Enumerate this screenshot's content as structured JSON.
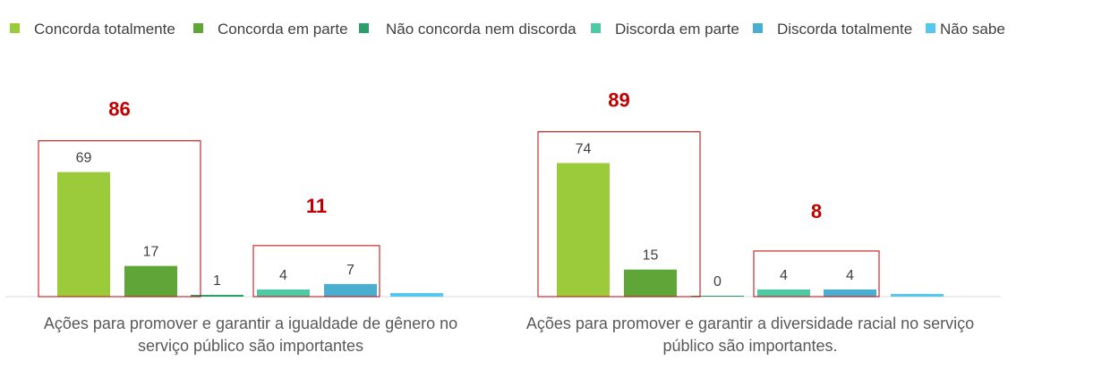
{
  "chart_data": {
    "type": "bar",
    "series": [
      {
        "name": "Concorda totalmente",
        "color": "#9bca3a"
      },
      {
        "name": "Concorda em parte",
        "color": "#60a537"
      },
      {
        "name": "Não concorda nem discorda",
        "color": "#2e9e6a"
      },
      {
        "name": "Discorda em parte",
        "color": "#4fcaa5"
      },
      {
        "name": "Discorda totalmente",
        "color": "#4aaed0"
      },
      {
        "name": "Não sabe",
        "color": "#56c8f0"
      }
    ],
    "categories": [
      {
        "label_lines": [
          "Ações para promover e garantir a igualdade de gênero no",
          "serviço público são importantes"
        ],
        "values": [
          69,
          17,
          1,
          4,
          7,
          2
        ],
        "value_labels": [
          "69",
          "17",
          "1",
          "4",
          "7",
          ""
        ],
        "agree_total": "86",
        "disagree_total": "11"
      },
      {
        "label_lines": [
          "Ações para promover e garantir a diversidade racial no serviço",
          "público são importantes."
        ],
        "values": [
          74,
          15,
          0,
          4,
          4,
          1.5
        ],
        "value_labels": [
          "74",
          "15",
          "0",
          "4",
          "4",
          ""
        ],
        "agree_total": "89",
        "disagree_total": "8"
      }
    ],
    "legend_position": "top",
    "grid": false,
    "highlight_color": "#c00000"
  }
}
